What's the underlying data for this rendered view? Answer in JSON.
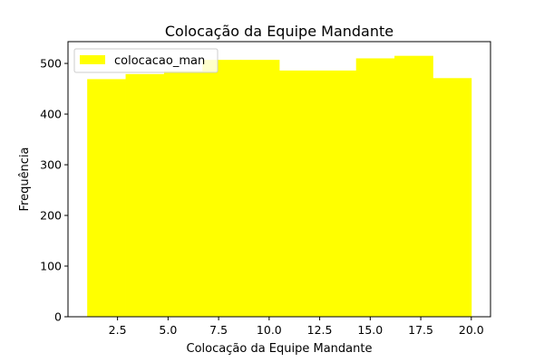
{
  "chart_data": {
    "type": "bar",
    "title": "Colocação da Equipe Mandante",
    "xlabel": "Colocação da Equipe Mandante",
    "ylabel": "Frequência",
    "bar_color": "#ffff00",
    "legend": {
      "label": "colocacao_man",
      "placement": "upper-left"
    },
    "xlim": [
      0.05,
      20.95
    ],
    "ylim": [
      0,
      543
    ],
    "xticks": [
      2.5,
      5.0,
      7.5,
      10.0,
      12.5,
      15.0,
      17.5,
      20.0
    ],
    "xtick_labels": [
      "2.5",
      "5.0",
      "7.5",
      "10.0",
      "12.5",
      "15.0",
      "17.5",
      "20.0"
    ],
    "yticks": [
      0,
      100,
      200,
      300,
      400,
      500
    ],
    "ytick_labels": [
      "0",
      "100",
      "200",
      "300",
      "400",
      "500"
    ],
    "bins": [
      {
        "x0": 1.0,
        "x1": 2.9,
        "value": 469
      },
      {
        "x0": 2.9,
        "x1": 4.8,
        "value": 479
      },
      {
        "x0": 4.8,
        "x1": 6.7,
        "value": 485
      },
      {
        "x0": 6.7,
        "x1": 8.6,
        "value": 507
      },
      {
        "x0": 8.6,
        "x1": 10.5,
        "value": 507
      },
      {
        "x0": 10.5,
        "x1": 12.4,
        "value": 486
      },
      {
        "x0": 12.4,
        "x1": 14.3,
        "value": 486
      },
      {
        "x0": 14.3,
        "x1": 16.2,
        "value": 510
      },
      {
        "x0": 16.2,
        "x1": 18.1,
        "value": 515
      },
      {
        "x0": 18.1,
        "x1": 20.0,
        "value": 471
      }
    ]
  }
}
